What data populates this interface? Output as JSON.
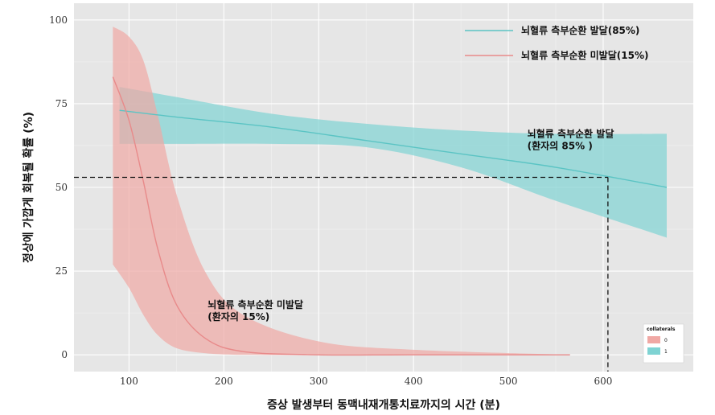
{
  "chart_data": {
    "type": "line",
    "title": "",
    "xlabel": "증상 발생부터 동맥내재개통치료까지의 시간 (분)",
    "ylabel": "정상에 가깝게 회복될 확률 (%)",
    "xlim": [
      42,
      695
    ],
    "ylim": [
      -5,
      105
    ],
    "xticks": [
      100,
      200,
      300,
      400,
      500,
      600
    ],
    "yticks": [
      0,
      25,
      50,
      75,
      100
    ],
    "grid": true,
    "legend_position": "top-right",
    "series": [
      {
        "name": "뇌혈류 측부순환 발달(85%)",
        "color": "#5bc4c4",
        "band_color": "#7fd3d3",
        "x": [
          90,
          150,
          250,
          350,
          450,
          550,
          667
        ],
        "y": [
          73,
          71,
          68,
          64,
          60,
          56,
          50
        ],
        "lower": [
          63,
          63,
          63,
          62,
          56,
          46,
          35
        ],
        "upper": [
          80,
          77,
          72,
          69,
          67,
          66,
          66
        ]
      },
      {
        "name": "뇌혈류 측부순환 미발달(15%)",
        "color": "#e88a8a",
        "band_color": "#f0a8a4",
        "x": [
          83,
          100,
          115,
          130,
          150,
          180,
          220,
          300,
          400,
          565
        ],
        "y": [
          83,
          70,
          52,
          32,
          15,
          5,
          1,
          0,
          0,
          0
        ],
        "lower": [
          27,
          20,
          12,
          6,
          2,
          0.5,
          0,
          0,
          0,
          0
        ],
        "upper": [
          98,
          95,
          88,
          72,
          48,
          25,
          12,
          4,
          1.5,
          0
        ]
      }
    ],
    "reference": {
      "x": 605,
      "y": 53
    },
    "annotations": [
      {
        "lines": [
          "뇌혈류 측부순환 발달",
          "(환자의 85% )"
        ],
        "x": 520,
        "y": 65
      },
      {
        "lines": [
          "뇌혈류 측부순환 미발달",
          "(환자의 15%)"
        ],
        "x": 183,
        "y": 14
      }
    ],
    "mini_legend": {
      "title": "collaterals",
      "items": [
        {
          "label": "0",
          "color": "#f0a8a4"
        },
        {
          "label": "1",
          "color": "#7fd3d3"
        }
      ]
    }
  }
}
